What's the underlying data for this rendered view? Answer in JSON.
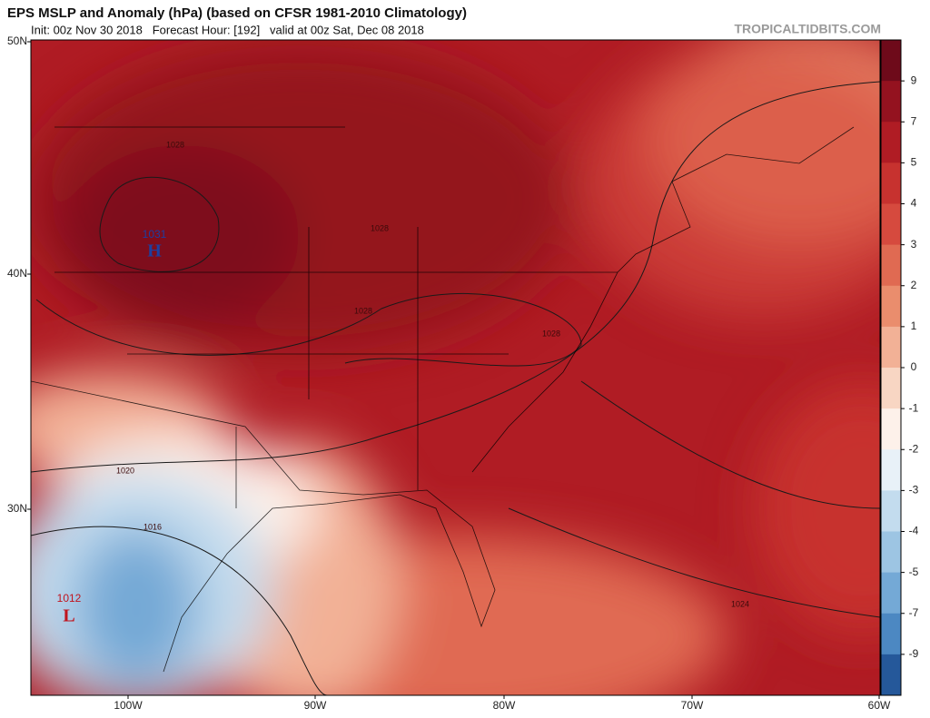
{
  "header": {
    "title": "EPS MSLP and Anomaly (hPa) (based on CFSR 1981-2010 Climatology)",
    "subtitle": "Init: 00z Nov 30 2018   Forecast Hour: [192]   valid at 00z Sat, Dec 08 2018",
    "site": "TROPICALTIDBITS.COM"
  },
  "map": {
    "lat_labels": [
      "50N",
      "40N",
      "30N"
    ],
    "lon_labels": [
      "100W",
      "90W",
      "80W",
      "70W",
      "60W"
    ],
    "contour_labels": [
      "1028",
      "1028",
      "1028",
      "1028",
      "1020",
      "1016",
      "1024"
    ],
    "high": {
      "value": "1031",
      "letter": "H"
    },
    "low": {
      "value": "1012",
      "letter": "L"
    }
  },
  "colorbar": {
    "labels": [
      "9",
      "7",
      "5",
      "4",
      "3",
      "2",
      "1",
      "0",
      "-1",
      "-2",
      "-3",
      "-4",
      "-5",
      "-7",
      "-9"
    ],
    "colors": [
      "#6e0a1a",
      "#94121f",
      "#b01c24",
      "#c7322f",
      "#d64a3e",
      "#e06a52",
      "#ea8d6d",
      "#f2b196",
      "#f8d6c3",
      "#fdf1ea",
      "#e8f1f8",
      "#c3dcee",
      "#9dc5e3",
      "#74a9d6",
      "#4c88c2",
      "#25589a"
    ]
  }
}
